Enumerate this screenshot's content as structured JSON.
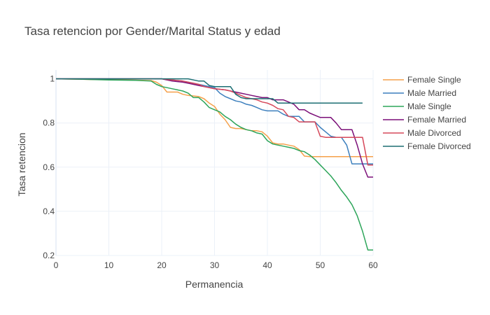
{
  "chart_data": {
    "type": "line",
    "title": "Tasa retencion por Gender/Marital Status y edad",
    "xlabel": "Permanencia",
    "ylabel": "Tasa retencion",
    "xlim": [
      0,
      60
    ],
    "ylim": [
      0.2,
      1.04
    ],
    "x_ticks": [
      0,
      10,
      20,
      30,
      40,
      50,
      60
    ],
    "y_ticks": [
      0.2,
      0.4,
      0.6,
      0.8,
      1
    ],
    "x_tick_labels": [
      "0",
      "10",
      "20",
      "30",
      "40",
      "50",
      "60"
    ],
    "y_tick_labels": [
      "0.2",
      "0.4",
      "0.6",
      "0.8",
      "1"
    ],
    "grid": true,
    "legend_position": "right",
    "series": [
      {
        "name": "Female Single",
        "color": "#f5a04a",
        "x": [
          0,
          5,
          10,
          15,
          18,
          19,
          20,
          21,
          23,
          24,
          25,
          27,
          28,
          29,
          30,
          31,
          32,
          33,
          34,
          35,
          36,
          37,
          38,
          39,
          40,
          41,
          42,
          43,
          44,
          45,
          46,
          47,
          48,
          50,
          52,
          55,
          58,
          60
        ],
        "y": [
          1,
          0.998,
          0.996,
          0.994,
          0.992,
          0.985,
          0.97,
          0.94,
          0.94,
          0.93,
          0.925,
          0.92,
          0.91,
          0.89,
          0.875,
          0.84,
          0.815,
          0.78,
          0.775,
          0.775,
          0.77,
          0.765,
          0.765,
          0.76,
          0.74,
          0.71,
          0.705,
          0.705,
          0.7,
          0.695,
          0.68,
          0.65,
          0.648,
          0.648,
          0.648,
          0.648,
          0.648,
          0.648
        ]
      },
      {
        "name": "Male Married",
        "color": "#3c7fbd",
        "x": [
          0,
          5,
          10,
          15,
          20,
          22,
          24,
          25,
          26,
          27,
          28,
          29,
          30,
          31,
          32,
          33,
          34,
          35,
          36,
          37,
          38,
          39,
          40,
          41,
          42,
          43,
          44,
          45,
          46,
          47,
          48,
          49,
          50,
          51,
          52,
          53,
          54,
          55,
          56,
          57,
          58,
          59,
          60
        ],
        "y": [
          1,
          1,
          1,
          1,
          1,
          0.995,
          0.99,
          0.985,
          0.98,
          0.975,
          0.97,
          0.965,
          0.96,
          0.935,
          0.92,
          0.91,
          0.9,
          0.895,
          0.885,
          0.88,
          0.87,
          0.86,
          0.855,
          0.855,
          0.855,
          0.84,
          0.83,
          0.83,
          0.83,
          0.805,
          0.805,
          0.805,
          0.78,
          0.76,
          0.74,
          0.735,
          0.735,
          0.7,
          0.615,
          0.615,
          0.615,
          0.615,
          0.615
        ]
      },
      {
        "name": "Male Single",
        "color": "#2da55a",
        "x": [
          0,
          5,
          10,
          15,
          18,
          19,
          20,
          21,
          22,
          23,
          24,
          25,
          26,
          27,
          28,
          29,
          30,
          31,
          32,
          33,
          34,
          35,
          36,
          37,
          38,
          39,
          40,
          41,
          42,
          43,
          44,
          45,
          46,
          47,
          48,
          49,
          50,
          51,
          52,
          53,
          54,
          55,
          56,
          57,
          58,
          59,
          60
        ],
        "y": [
          1,
          0.998,
          0.995,
          0.993,
          0.99,
          0.975,
          0.965,
          0.96,
          0.955,
          0.95,
          0.945,
          0.935,
          0.915,
          0.915,
          0.895,
          0.87,
          0.86,
          0.85,
          0.83,
          0.815,
          0.795,
          0.78,
          0.77,
          0.765,
          0.755,
          0.75,
          0.72,
          0.705,
          0.7,
          0.695,
          0.69,
          0.685,
          0.675,
          0.67,
          0.655,
          0.635,
          0.61,
          0.585,
          0.56,
          0.53,
          0.495,
          0.465,
          0.43,
          0.38,
          0.31,
          0.225,
          0.225
        ]
      },
      {
        "name": "Female Married",
        "color": "#7b0f78",
        "x": [
          0,
          5,
          10,
          15,
          20,
          22,
          24,
          25,
          26,
          27,
          28,
          29,
          30,
          32,
          33,
          34,
          35,
          36,
          37,
          38,
          39,
          40,
          41,
          42,
          43,
          44,
          45,
          46,
          47,
          48,
          49,
          50,
          51,
          52,
          53,
          54,
          55,
          56,
          57,
          58,
          59,
          60
        ],
        "y": [
          1,
          1,
          1,
          1,
          1,
          0.99,
          0.985,
          0.98,
          0.975,
          0.97,
          0.965,
          0.96,
          0.955,
          0.95,
          0.945,
          0.94,
          0.935,
          0.93,
          0.925,
          0.92,
          0.915,
          0.915,
          0.905,
          0.905,
          0.905,
          0.895,
          0.885,
          0.86,
          0.86,
          0.845,
          0.835,
          0.825,
          0.825,
          0.825,
          0.8,
          0.77,
          0.77,
          0.77,
          0.7,
          0.615,
          0.555,
          0.555
        ]
      },
      {
        "name": "Male Divorced",
        "color": "#d6485a",
        "x": [
          0,
          5,
          10,
          15,
          20,
          22,
          24,
          25,
          26,
          27,
          28,
          29,
          30,
          32,
          33,
          34,
          35,
          36,
          37,
          38,
          39,
          40,
          41,
          42,
          43,
          44,
          45,
          46,
          47,
          48,
          49,
          50,
          51,
          52,
          53,
          54,
          55,
          56,
          57,
          58,
          59,
          60
        ],
        "y": [
          1,
          1,
          1,
          1,
          1,
          0.995,
          0.99,
          0.985,
          0.98,
          0.975,
          0.965,
          0.96,
          0.955,
          0.95,
          0.945,
          0.935,
          0.925,
          0.915,
          0.91,
          0.905,
          0.895,
          0.89,
          0.88,
          0.865,
          0.86,
          0.83,
          0.825,
          0.805,
          0.805,
          0.805,
          0.805,
          0.74,
          0.735,
          0.735,
          0.735,
          0.735,
          0.735,
          0.735,
          0.735,
          0.735,
          0.61,
          0.61
        ]
      },
      {
        "name": "Female Divorced",
        "color": "#1b6e72",
        "x": [
          0,
          5,
          10,
          15,
          20,
          22,
          24,
          25,
          26,
          27,
          28,
          29,
          30,
          32,
          33,
          34,
          35,
          36,
          38,
          40,
          41,
          42,
          43,
          44,
          45,
          50,
          55,
          58
        ],
        "y": [
          1,
          1,
          1,
          1,
          1,
          1,
          1,
          1,
          0.995,
          0.99,
          0.99,
          0.97,
          0.965,
          0.965,
          0.965,
          0.93,
          0.915,
          0.91,
          0.91,
          0.91,
          0.91,
          0.89,
          0.89,
          0.89,
          0.89,
          0.89,
          0.89,
          0.89
        ]
      }
    ]
  }
}
